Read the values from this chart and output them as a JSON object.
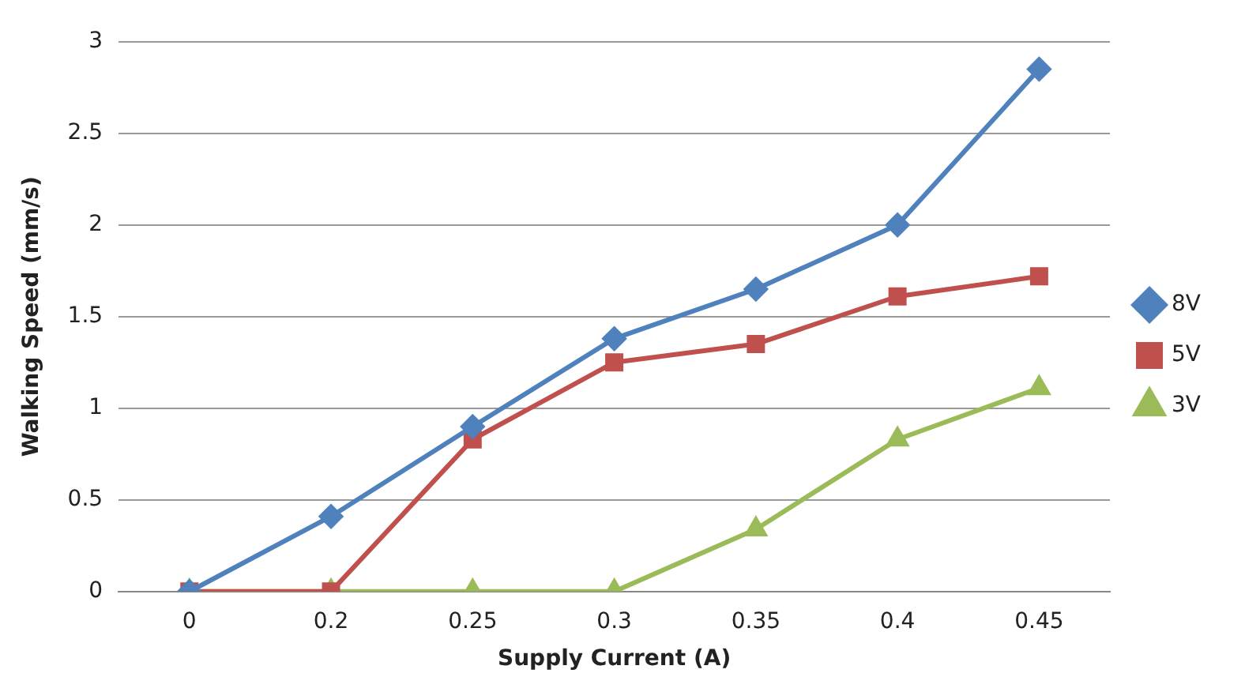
{
  "chart_data": {
    "type": "line",
    "xlabel": "Supply Current (A)",
    "ylabel": "Walking Speed (mm/s)",
    "categories": [
      "0",
      "0.2",
      "0.25",
      "0.3",
      "0.35",
      "0.4",
      "0.45"
    ],
    "series": [
      {
        "name": "8V",
        "color": "#4f81bd",
        "marker": "diamond",
        "values": [
          0,
          0.41,
          0.9,
          1.38,
          1.65,
          2.0,
          2.85
        ]
      },
      {
        "name": "5V",
        "color": "#c0504d",
        "marker": "square",
        "values": [
          0,
          0,
          0.83,
          1.25,
          1.35,
          1.61,
          1.72
        ]
      },
      {
        "name": "3V",
        "color": "#9bbb59",
        "marker": "triangle",
        "values": [
          0,
          0,
          0,
          0,
          0.34,
          0.83,
          1.11
        ]
      }
    ],
    "ylim": [
      0,
      3
    ],
    "yticks": [
      0,
      0.5,
      1,
      1.5,
      2,
      2.5,
      3
    ],
    "grid": "y",
    "legend": "right"
  }
}
